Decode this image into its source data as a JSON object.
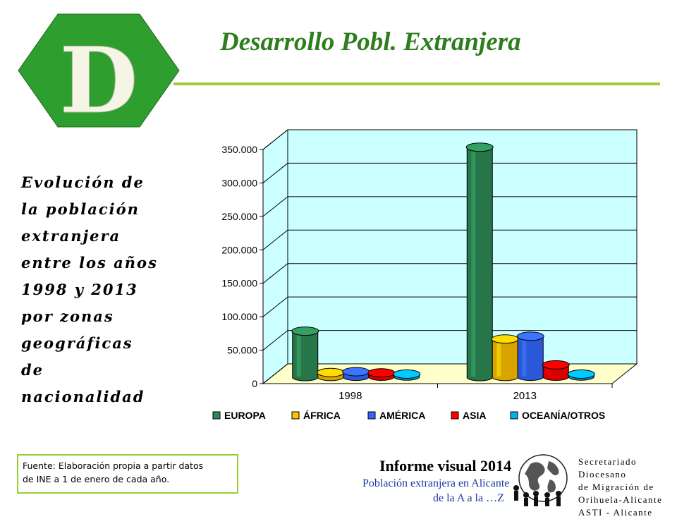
{
  "slide": {
    "letter": "D",
    "title": "Desarrollo Pobl. Extranjera",
    "description": "Evolución de\nla población\nextranjera\nentre los años\n1998 y 2013\npor zonas\ngeográficas\nde\nnacionalidad",
    "source": "Fuente: Elaboración propia a partir datos\nde  INE a 1 de enero de cada año.",
    "colors": {
      "title": "#2e7d1f",
      "hexagon": "#2e9e2e",
      "rule": "#9acd32",
      "wall": "#ccffff",
      "floor": "#ffffcc"
    }
  },
  "footer": {
    "report_title": "Informe visual 2014",
    "report_subtitle_1": "Población extranjera en Alicante",
    "report_subtitle_2": "de la A a la …Z",
    "org_name": "Secretariado Diocesano\nde Migración de\nOrihuela-Alicante\nASTI - Alicante"
  },
  "chart_data": {
    "type": "bar",
    "categories": [
      "1998",
      "2013"
    ],
    "series": [
      {
        "name": "EUROPA",
        "color": "#2e8b57",
        "values": [
          70000,
          345000
        ]
      },
      {
        "name": "ÁFRICA",
        "color": "#ffc000",
        "values": [
          8000,
          58000
        ]
      },
      {
        "name": "AMÉRICA",
        "color": "#3366ff",
        "values": [
          9000,
          62000
        ]
      },
      {
        "name": "ASIA",
        "color": "#ff0000",
        "values": [
          7000,
          19000
        ]
      },
      {
        "name": "OCEANÍA/OTROS",
        "color": "#00b0f0",
        "values": [
          5000,
          5000
        ]
      }
    ],
    "y_ticks": [
      "0",
      "50.000",
      "100.000",
      "150.000",
      "200.000",
      "250.000",
      "300.000",
      "350.000"
    ],
    "ylim": [
      0,
      350000
    ],
    "grid": true,
    "legend_position": "bottom",
    "style": "3d"
  }
}
